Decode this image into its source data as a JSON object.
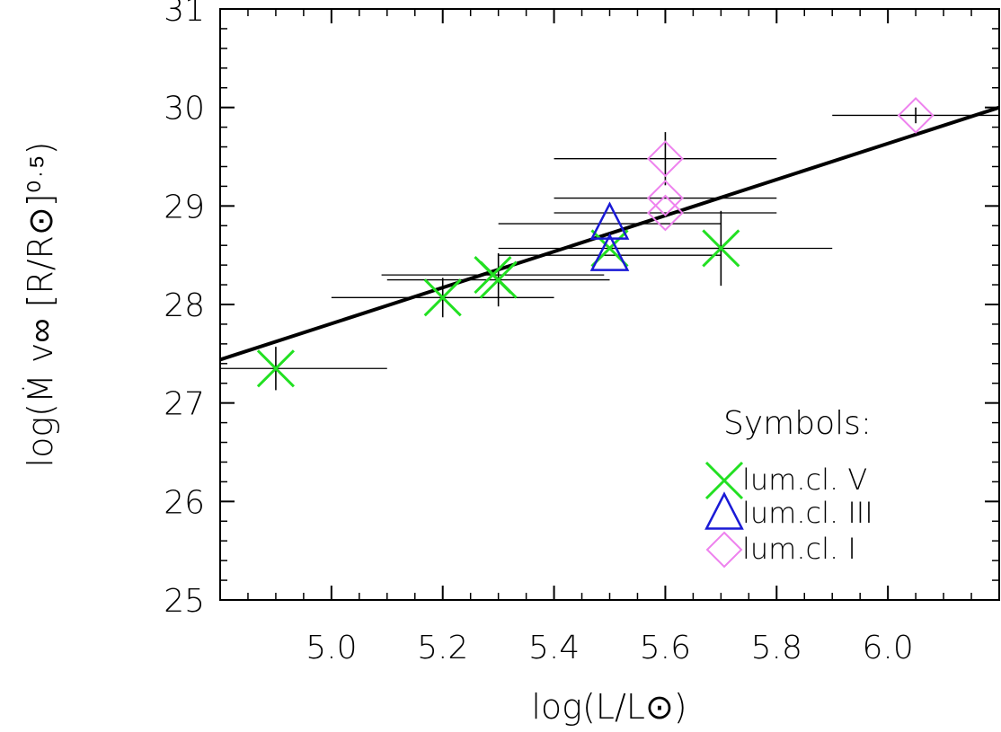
{
  "chart_data": {
    "type": "scatter",
    "xlabel": "log(L/L⊙)",
    "ylabel": "log(Ṁ v∞ [R/R⊙]⁰·⁵)",
    "xlim": [
      4.8,
      6.2
    ],
    "ylim": [
      25,
      31
    ],
    "xticks": [
      "5.0",
      "5.2",
      "5.4",
      "5.6",
      "5.8",
      "6.0"
    ],
    "xtick_values": [
      5.0,
      5.2,
      5.4,
      5.6,
      5.8,
      6.0
    ],
    "yticks": [
      "25",
      "26",
      "27",
      "28",
      "29",
      "30",
      "31"
    ],
    "ytick_values": [
      25,
      26,
      27,
      28,
      29,
      30,
      31
    ],
    "grid": false,
    "legend_placement": "bottom-right",
    "legend_title": "Symbols:",
    "fit_line": {
      "x": [
        4.8,
        6.2
      ],
      "y": [
        27.44,
        30.0
      ],
      "color": "#000000"
    },
    "series": [
      {
        "name": "lum.cl. V",
        "marker": "x",
        "color": "#22e022",
        "points": [
          {
            "x": 4.9,
            "y": 27.35,
            "xerr": 0.2,
            "yerr": 0.22
          },
          {
            "x": 5.2,
            "y": 28.07,
            "xerr": 0.2,
            "yerr": 0.2
          },
          {
            "x": 5.29,
            "y": 28.3,
            "xerr": 0.2,
            "yerr": 0.0
          },
          {
            "x": 5.3,
            "y": 28.25,
            "xerr": 0.2,
            "yerr": 0.27
          },
          {
            "x": 5.5,
            "y": 28.57,
            "xerr": 0.2,
            "yerr": 0.0
          },
          {
            "x": 5.7,
            "y": 28.57,
            "xerr": 0.2,
            "yerr": 0.38
          }
        ]
      },
      {
        "name": "lum.cl. III",
        "marker": "triangle",
        "color": "#1a1ad6",
        "points": [
          {
            "x": 5.5,
            "y": 28.5,
            "xerr": 0.2,
            "yerr": 0.0
          },
          {
            "x": 5.5,
            "y": 28.82,
            "xerr": 0.2,
            "yerr": 0.0
          }
        ]
      },
      {
        "name": "lum.cl. I",
        "marker": "diamond",
        "color": "#ee82ee",
        "points": [
          {
            "x": 5.6,
            "y": 29.48,
            "xerr": 0.2,
            "yerr": 0.27
          },
          {
            "x": 5.6,
            "y": 29.08,
            "xerr": 0.2,
            "yerr": 0.0
          },
          {
            "x": 5.6,
            "y": 28.93,
            "xerr": 0.2,
            "yerr": 0.0
          },
          {
            "x": 6.05,
            "y": 29.92,
            "xerr": 0.15,
            "yerr": 0.08
          }
        ]
      }
    ]
  }
}
